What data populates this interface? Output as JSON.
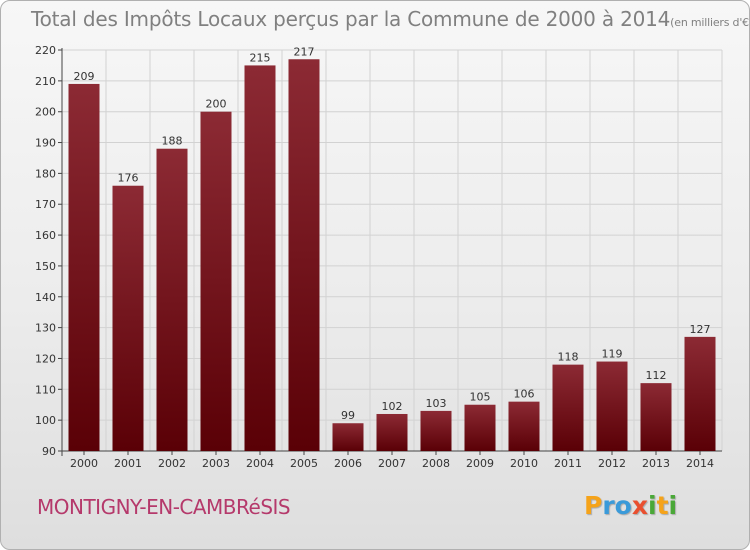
{
  "header": {
    "title": "Total des Impôts Locaux perçus par la Commune de 2000 à 2014",
    "unit": "(en milliers d'€)"
  },
  "footer": {
    "commune": "MONTIGNY-EN-CAMBRéSIS",
    "logo": "Proxiti"
  },
  "colors": {
    "bar_top": "#8c2a34",
    "bar_bottom": "#5a0006",
    "commune_text": "#b5396b",
    "grid": "#d2d2d2"
  },
  "chart_data": {
    "type": "bar",
    "title": "Total des Impôts Locaux perçus par la Commune de 2000 à 2014",
    "xlabel": "",
    "ylabel": "",
    "ylim": [
      90,
      220
    ],
    "yticks": [
      90,
      100,
      110,
      120,
      130,
      140,
      150,
      160,
      170,
      180,
      190,
      200,
      210,
      220
    ],
    "grid": true,
    "categories": [
      "2000",
      "2001",
      "2002",
      "2003",
      "2004",
      "2005",
      "2006",
      "2007",
      "2008",
      "2009",
      "2010",
      "2011",
      "2012",
      "2013",
      "2014"
    ],
    "values": [
      209,
      176,
      188,
      200,
      215,
      217,
      99,
      102,
      103,
      105,
      106,
      118,
      119,
      112,
      127
    ]
  }
}
